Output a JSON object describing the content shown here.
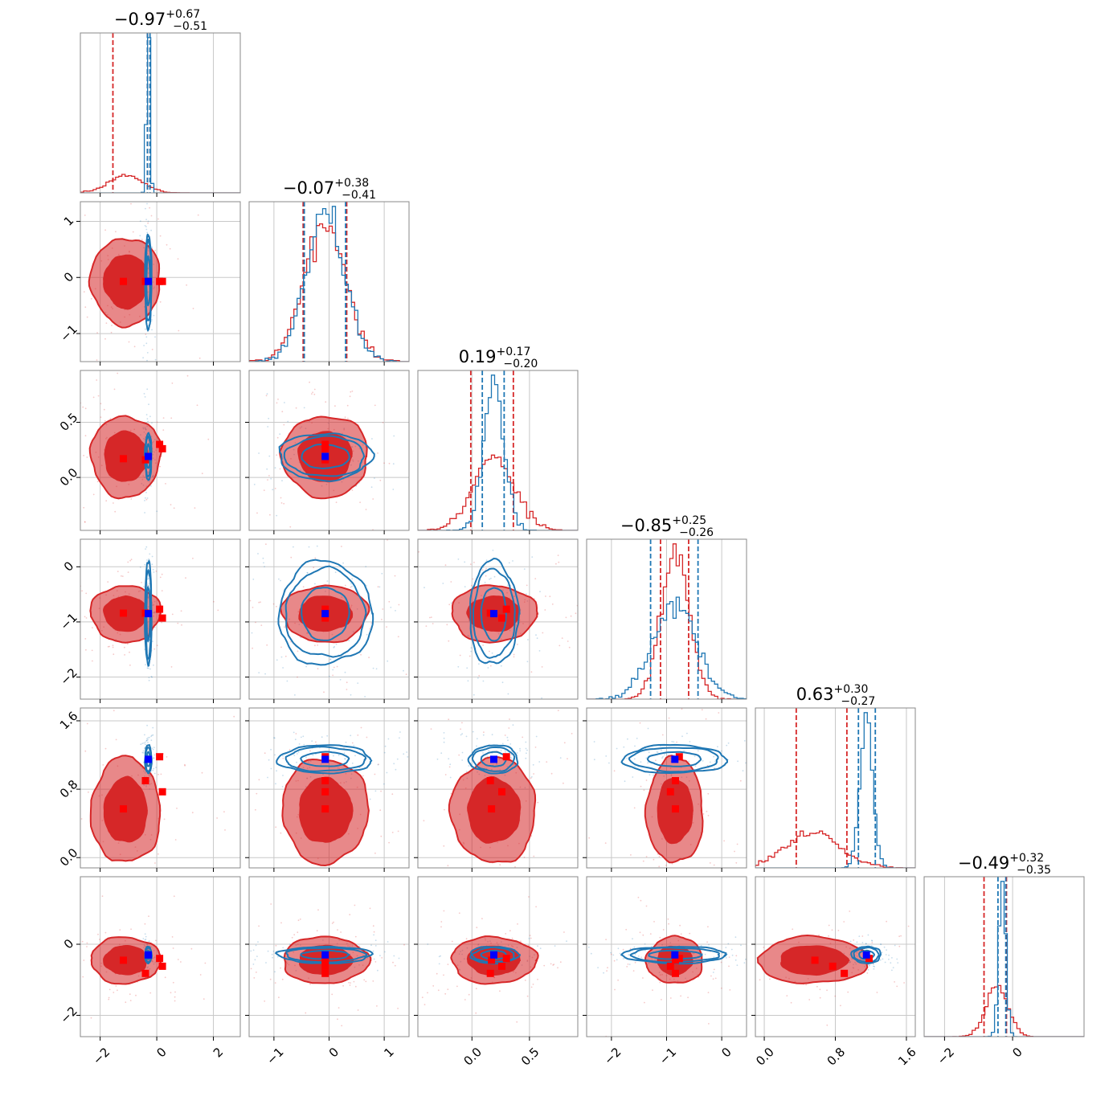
{
  "colors": {
    "red": "#d62728",
    "blue": "#1f77b4",
    "marker_red": "#ff0000",
    "marker_blue": "#0000ff",
    "grid": "#c8c8c8",
    "frame": "#888888"
  },
  "chart_data": {
    "type": "corner",
    "grid": true,
    "dimensions": 6,
    "titles": [
      {
        "value": "−0.97",
        "plus": "+0.67",
        "minus": "−0.51"
      },
      {
        "value": "−0.07",
        "plus": "+0.38",
        "minus": "−0.41"
      },
      {
        "value": "0.19",
        "plus": "+0.17",
        "minus": "−0.20"
      },
      {
        "value": "−0.85",
        "plus": "+0.25",
        "minus": "−0.26"
      },
      {
        "value": "0.63",
        "plus": "+0.30",
        "minus": "−0.27"
      },
      {
        "value": "−0.49",
        "plus": "+0.32",
        "minus": "−0.35"
      }
    ],
    "xlim": [
      [
        -2.7,
        2.95
      ],
      [
        -1.45,
        1.45
      ],
      [
        -0.47,
        0.92
      ],
      [
        -2.45,
        0.45
      ],
      [
        -0.1,
        1.7
      ],
      [
        -2.6,
        2.1
      ]
    ],
    "ylim": [
      [
        -1.5,
        1.35
      ],
      [
        -0.48,
        0.97
      ],
      [
        -2.4,
        0.5
      ],
      [
        -0.12,
        1.75
      ],
      [
        -2.6,
        1.9
      ]
    ],
    "xticks": [
      {
        "values": [
          -2,
          0,
          2
        ],
        "labels": [
          "−2",
          "0",
          "2"
        ]
      },
      {
        "values": [
          -1,
          0,
          1
        ],
        "labels": [
          "−1",
          "0",
          "1"
        ]
      },
      {
        "values": [
          0.0,
          0.5
        ],
        "labels": [
          "0.0",
          "0.5"
        ]
      },
      {
        "values": [
          -2,
          -1,
          0
        ],
        "labels": [
          "−2",
          "−1",
          "0"
        ]
      },
      {
        "values": [
          0.0,
          0.8,
          1.6
        ],
        "labels": [
          "0.0",
          "0.8",
          "1.6"
        ]
      },
      {
        "values": [
          -2,
          0
        ],
        "labels": [
          "−2",
          "0"
        ]
      }
    ],
    "yticks": [
      {
        "values": [
          1,
          0,
          -1
        ],
        "labels": [
          "1",
          "0",
          "−1"
        ]
      },
      {
        "values": [
          0.5,
          0.0
        ],
        "labels": [
          "0.5",
          "0.0"
        ]
      },
      {
        "values": [
          0,
          -1,
          -2
        ],
        "labels": [
          "0",
          "−1",
          "−2"
        ]
      },
      {
        "values": [
          1.6,
          0.8,
          0.0
        ],
        "labels": [
          "1.6",
          "0.8",
          "0.0"
        ]
      },
      {
        "values": [
          0,
          -2
        ],
        "labels": [
          "0",
          "−2"
        ]
      }
    ],
    "series": [
      {
        "color": "red",
        "mean": [
          -1.1,
          -0.07,
          0.19,
          -0.85,
          0.55,
          -0.45
        ],
        "sigma": [
          0.6,
          0.38,
          0.18,
          0.25,
          0.3,
          0.32
        ],
        "quantiles": [
          [
            -1.55,
            -0.33
          ],
          [
            -0.47,
            0.32
          ],
          [
            -0.01,
            0.36
          ],
          [
            -1.11,
            -0.6
          ],
          [
            0.36,
            0.93
          ],
          [
            -0.84,
            -0.18
          ]
        ],
        "markers": [
          [
            -1.18,
            -0.07,
            0.17,
            -0.84,
            0.57,
            -0.45
          ],
          [
            -0.4,
            -0.07,
            0.16,
            -0.84,
            0.9,
            -0.82
          ],
          [
            0.1,
            -0.07,
            0.3,
            -0.77,
            1.18,
            -0.4
          ],
          [
            0.2,
            -0.07,
            0.26,
            -0.93,
            0.77,
            -0.62
          ]
        ]
      },
      {
        "color": "blue",
        "mean": [
          -0.3,
          -0.07,
          0.19,
          -0.85,
          1.15,
          -0.3
        ],
        "sigma": [
          0.05,
          0.36,
          0.09,
          0.4,
          0.07,
          0.1
        ],
        "quantiles": [
          [
            -0.33,
            -0.24
          ],
          [
            -0.45,
            0.3
          ],
          [
            0.09,
            0.28
          ],
          [
            -1.29,
            -0.43
          ],
          [
            1.06,
            1.25
          ],
          [
            -0.43,
            -0.2
          ]
        ],
        "markers": [
          [
            -0.3,
            -0.07,
            0.19,
            -0.85,
            1.15,
            -0.3
          ]
        ]
      }
    ]
  }
}
